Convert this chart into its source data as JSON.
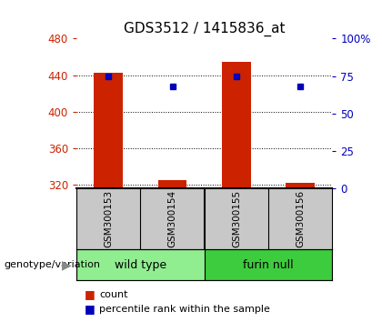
{
  "title": "GDS3512 / 1415836_at",
  "samples": [
    "GSM300153",
    "GSM300154",
    "GSM300155",
    "GSM300156"
  ],
  "count_values": [
    443,
    325,
    455,
    322
  ],
  "percentile_values": [
    75,
    68,
    75,
    68
  ],
  "ylim_left": [
    316,
    480
  ],
  "ylim_right": [
    0,
    100
  ],
  "yticks_left": [
    320,
    360,
    400,
    440,
    480
  ],
  "yticks_right": [
    0,
    25,
    50,
    75,
    100
  ],
  "ytick_labels_right": [
    "0",
    "25",
    "50",
    "75",
    "100%"
  ],
  "groups": [
    {
      "label": "wild type",
      "indices": [
        0,
        1
      ],
      "color": "#90EE90"
    },
    {
      "label": "furin null",
      "indices": [
        2,
        3
      ],
      "color": "#3DCC3D"
    }
  ],
  "bar_color": "#CC2200",
  "dot_color": "#0000BB",
  "bar_width": 0.45,
  "bg_color": "#ffffff",
  "sample_box_color": "#C8C8C8",
  "genotype_label": "genotype/variation",
  "legend_items": [
    {
      "color": "#CC2200",
      "label": "count"
    },
    {
      "color": "#0000BB",
      "label": "percentile rank within the sample"
    }
  ],
  "title_fontsize": 11,
  "tick_fontsize": 8.5,
  "label_fontsize": 8
}
